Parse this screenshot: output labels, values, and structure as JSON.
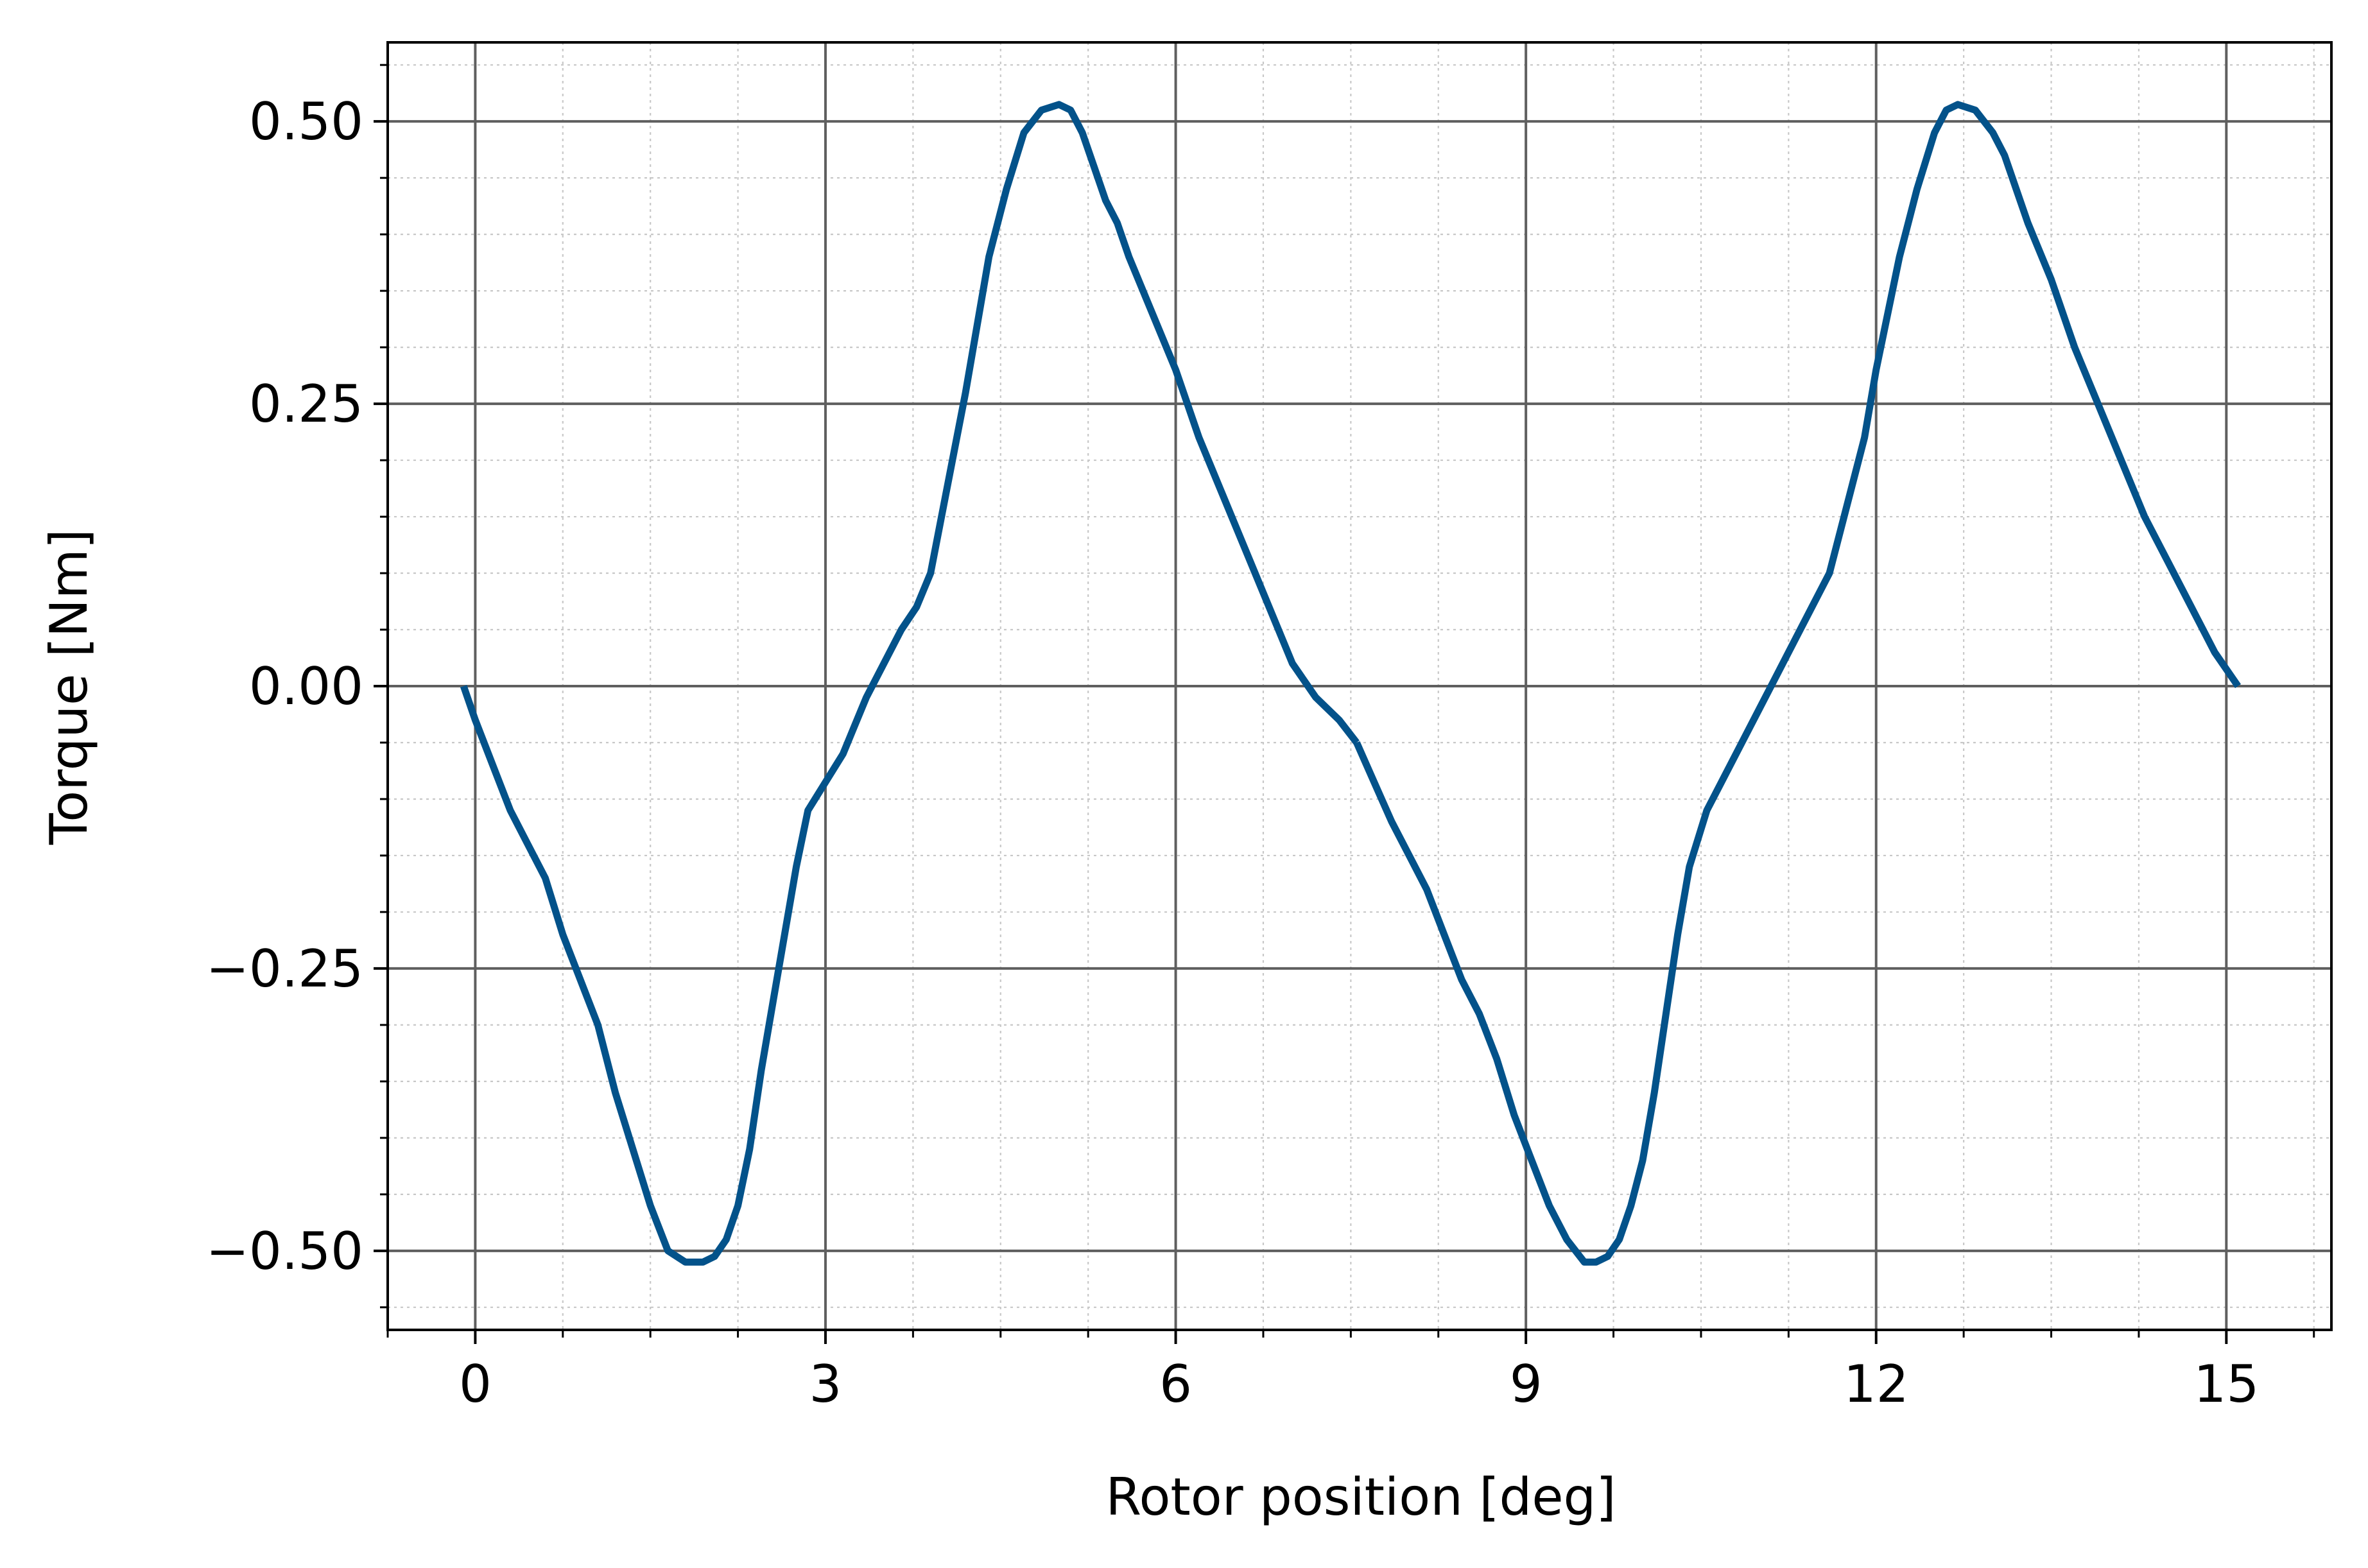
{
  "chart_data": {
    "type": "line",
    "title": "",
    "xlabel": "Rotor position [deg]",
    "ylabel": "Torque [Nm]",
    "xlim": [
      -0.75,
      15.9
    ],
    "ylim": [
      -0.57,
      0.57
    ],
    "x_ticks": [
      0,
      3,
      6,
      9,
      12,
      15
    ],
    "x_tick_labels": [
      "0",
      "3",
      "6",
      "9",
      "12",
      "15"
    ],
    "y_ticks": [
      -0.5,
      -0.25,
      0,
      0.25,
      0.5
    ],
    "y_tick_labels": [
      "−0.50",
      "−0.25",
      "0.00",
      "0.25",
      "0.50"
    ],
    "x_minor_step": 0.75,
    "y_minor_step": 0.05,
    "grid": "major solid, minor dotted",
    "legend": "none",
    "colors": {
      "line": "#03528a",
      "major_grid": "#5f5f5f",
      "minor_grid": "#c8c8c8",
      "axes": "#000000"
    },
    "series": [
      {
        "x": [
          -0.1,
          0.0,
          0.15,
          0.3,
          0.45,
          0.6,
          0.75,
          0.9,
          1.05,
          1.2,
          1.35,
          1.5,
          1.65,
          1.8,
          1.95,
          2.05,
          2.15,
          2.25,
          2.35,
          2.45,
          2.55,
          2.65,
          2.75,
          2.85,
          3.0,
          3.15,
          3.25,
          3.35,
          3.5,
          3.65,
          3.78,
          3.9,
          4.05,
          4.2,
          4.3,
          4.4,
          4.55,
          4.7,
          4.85,
          5.0,
          5.1,
          5.2,
          5.3,
          5.4,
          5.5,
          5.6,
          5.8,
          6.0,
          6.2,
          6.4,
          6.6,
          6.8,
          7.0,
          7.2,
          7.4,
          7.55
        ],
        "y": [
          0.0,
          -0.03,
          -0.07,
          -0.11,
          -0.14,
          -0.17,
          -0.22,
          -0.26,
          -0.3,
          -0.36,
          -0.41,
          -0.46,
          -0.5,
          -0.51,
          -0.51,
          -0.505,
          -0.49,
          -0.46,
          -0.41,
          -0.34,
          -0.28,
          -0.22,
          -0.16,
          -0.11,
          -0.085,
          -0.06,
          -0.035,
          -0.01,
          0.02,
          0.05,
          0.07,
          0.1,
          0.18,
          0.26,
          0.32,
          0.38,
          0.44,
          0.49,
          0.51,
          0.515,
          0.51,
          0.49,
          0.46,
          0.43,
          0.41,
          0.38,
          0.33,
          0.28,
          0.22,
          0.17,
          0.12,
          0.07,
          0.02,
          -0.01,
          -0.03,
          -0.05
        ]
      },
      {
        "x": [
          7.55,
          7.7,
          7.85,
          8.0,
          8.15,
          8.3,
          8.45,
          8.6,
          8.75,
          8.9,
          9.05,
          9.2,
          9.35,
          9.5,
          9.6,
          9.7,
          9.8,
          9.9,
          10.0,
          10.1,
          10.2,
          10.3,
          10.4,
          10.55,
          10.7,
          10.85,
          11.0,
          11.15,
          11.3,
          11.45,
          11.6,
          11.75,
          11.9,
          12.0,
          12.1,
          12.2,
          12.35,
          12.5,
          12.6,
          12.7,
          12.85,
          13.0,
          13.1,
          13.2,
          13.3,
          13.5,
          13.7,
          13.9,
          14.1,
          14.3,
          14.5,
          14.7,
          14.9,
          15.1
        ],
        "y": [
          -0.05,
          -0.085,
          -0.12,
          -0.15,
          -0.18,
          -0.22,
          -0.26,
          -0.29,
          -0.33,
          -0.38,
          -0.42,
          -0.46,
          -0.49,
          -0.51,
          -0.51,
          -0.505,
          -0.49,
          -0.46,
          -0.42,
          -0.36,
          -0.29,
          -0.22,
          -0.16,
          -0.11,
          -0.08,
          -0.05,
          -0.02,
          0.01,
          0.04,
          0.07,
          0.1,
          0.16,
          0.22,
          0.28,
          0.33,
          0.38,
          0.44,
          0.49,
          0.51,
          0.515,
          0.51,
          0.49,
          0.47,
          0.44,
          0.41,
          0.36,
          0.3,
          0.25,
          0.2,
          0.15,
          0.11,
          0.07,
          0.03,
          0.0
        ]
      }
    ]
  }
}
